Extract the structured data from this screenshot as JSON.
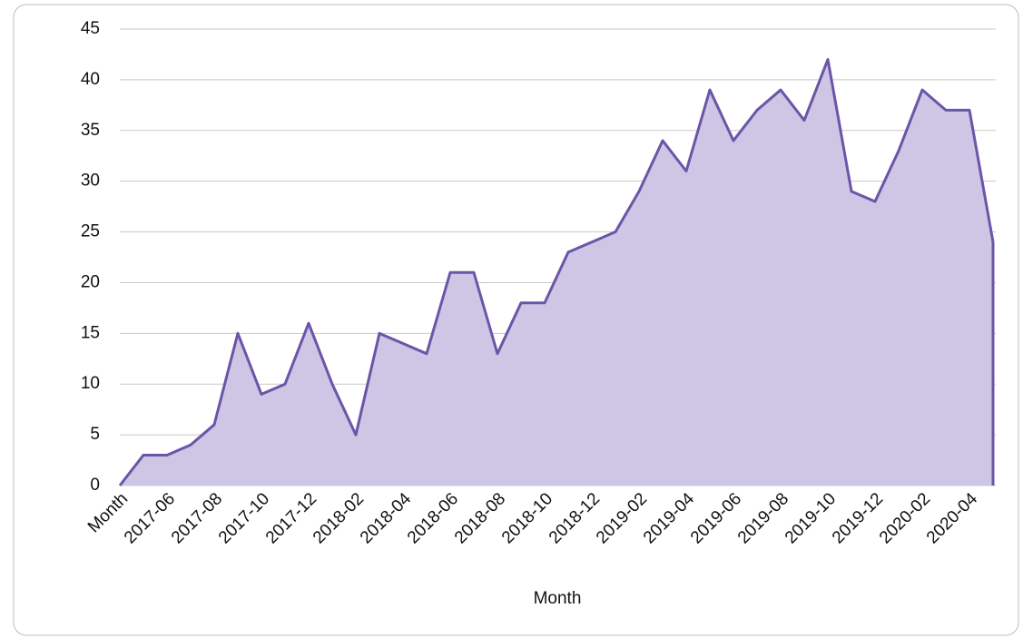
{
  "chart_data": {
    "type": "area",
    "x_label": "Month",
    "categories": [
      "Month",
      null,
      "2017-06",
      null,
      "2017-08",
      null,
      "2017-10",
      null,
      "2017-12",
      null,
      "2018-02",
      null,
      "2018-04",
      null,
      "2018-06",
      null,
      "2018-08",
      null,
      "2018-10",
      null,
      "2018-12",
      null,
      "2019-02",
      null,
      "2019-04",
      null,
      "2019-06",
      null,
      "2019-08",
      null,
      "2019-10",
      null,
      "2019-12",
      null,
      "2020-02",
      null,
      "2020-04",
      null
    ],
    "values": [
      0,
      3,
      3,
      4,
      6,
      15,
      9,
      10,
      16,
      10,
      5,
      15,
      14,
      13,
      21,
      21,
      13,
      18,
      18,
      23,
      24,
      25,
      29,
      34,
      31,
      39,
      34,
      37,
      39,
      36,
      42,
      29,
      28,
      33,
      39,
      37,
      37,
      24
    ],
    "color": "#6b55a8",
    "fill": "#cdc6e4",
    "ylim": [
      0,
      45
    ],
    "yticks": [
      0,
      5,
      10,
      15,
      20,
      25,
      30,
      35,
      40,
      45
    ],
    "grid": true
  }
}
